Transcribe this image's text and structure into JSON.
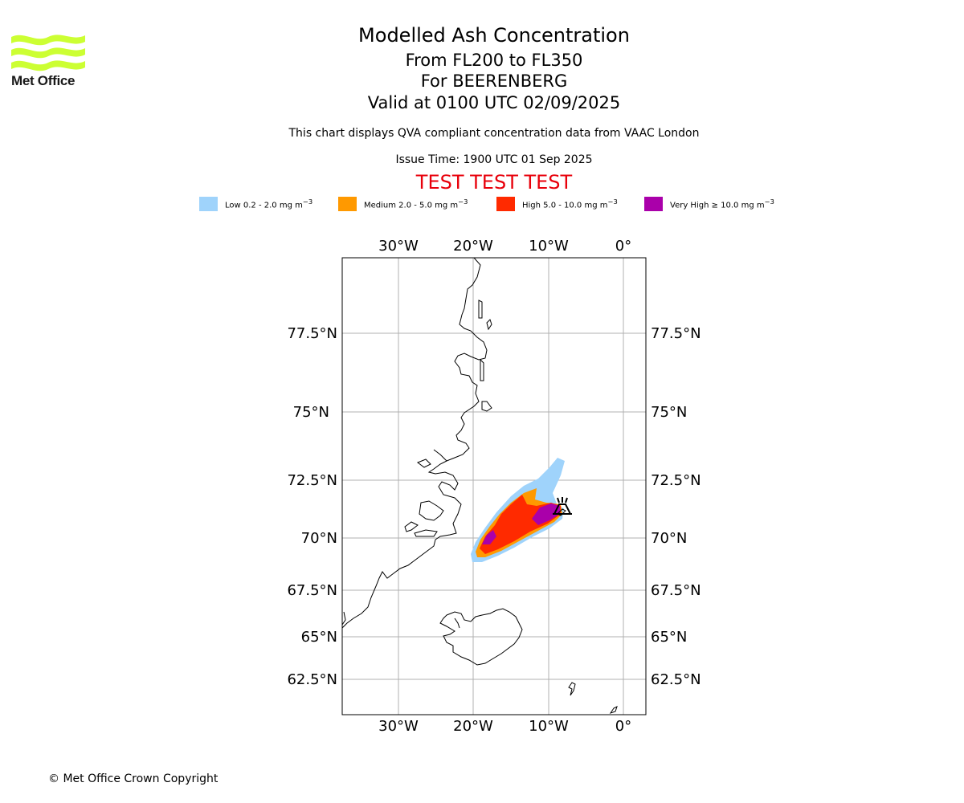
{
  "logo": {
    "name": "Met Office",
    "color": "#ccff33"
  },
  "header": {
    "title": "Modelled Ash Concentration",
    "levels": "From FL200 to FL350",
    "volcano": "For BEERENBERG",
    "valid": "Valid at 0100 UTC 02/09/2025",
    "description": "This chart displays QVA compliant concentration data from VAAC London",
    "issue_time": "Issue Time: 1900 UTC 01 Sep 2025",
    "test_banner": "TEST TEST TEST"
  },
  "legend": [
    {
      "label": "Low 0.2 - 2.0 mg m",
      "sup": "−3",
      "color": "#9fd3fb"
    },
    {
      "label": "Medium 2.0 - 5.0 mg m",
      "sup": "−3",
      "color": "#ff9900"
    },
    {
      "label": "High 5.0 - 10.0 mg m",
      "sup": "−3",
      "color": "#ff2a00"
    },
    {
      "label": "Very High ≥ 10.0 mg m",
      "sup": "−3",
      "color": "#aa00aa"
    }
  ],
  "map": {
    "lon_ticks": [
      "30°W",
      "20°W",
      "10°W",
      "0°"
    ],
    "lat_ticks": [
      "77.5°N",
      "75°N",
      "72.5°N",
      "70°N",
      "67.5°N",
      "65°N",
      "62.5°N"
    ],
    "volcano_icon": "volcano-icon"
  },
  "footer": {
    "copyright": "© Met Office Crown Copyright"
  }
}
